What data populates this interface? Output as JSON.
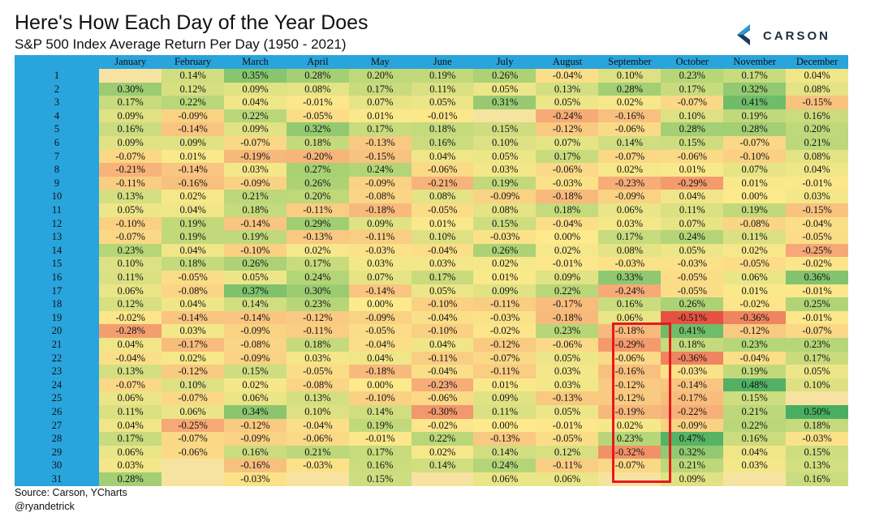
{
  "title": "Here's How Each Day of the Year Does",
  "subtitle": "S&P 500 Index Average Return Per Day (1950 - 2021)",
  "logo": {
    "text": "CARSON",
    "icon": "carson-chevron-logo",
    "colors": [
      "#2a9ad6",
      "#1f3a5f"
    ]
  },
  "footer": {
    "source": "Source: Carson, YCharts",
    "handle": "@ryandetrick"
  },
  "highlight": {
    "month": "September",
    "days": [
      20,
      30
    ],
    "color": "#e8171d"
  },
  "colors": {
    "header": "#29a4dc",
    "scale": [
      "#e8453c",
      "#f4a873",
      "#fbe98c",
      "#9bcb6e",
      "#3fab5d"
    ]
  },
  "chart_data": {
    "type": "heatmap",
    "title": "Here's How Each Day of the Year Does",
    "subtitle": "S&P 500 Index Average Return Per Day (1950 - 2021)",
    "columns": [
      "January",
      "February",
      "March",
      "April",
      "May",
      "June",
      "July",
      "August",
      "September",
      "October",
      "November",
      "December"
    ],
    "rows": [
      "1",
      "2",
      "3",
      "4",
      "5",
      "6",
      "7",
      "8",
      "9",
      "10",
      "11",
      "12",
      "13",
      "14",
      "15",
      "16",
      "17",
      "18",
      "19",
      "20",
      "21",
      "22",
      "23",
      "24",
      "25",
      "26",
      "27",
      "28",
      "29",
      "30",
      "31"
    ],
    "values": [
      [
        null,
        0.14,
        0.35,
        0.28,
        0.2,
        0.19,
        0.26,
        -0.04,
        0.1,
        0.23,
        0.17,
        0.04
      ],
      [
        0.3,
        0.12,
        0.09,
        0.08,
        0.17,
        0.11,
        0.05,
        0.13,
        0.28,
        0.17,
        0.32,
        0.08
      ],
      [
        0.17,
        0.22,
        0.04,
        -0.01,
        0.07,
        0.05,
        0.31,
        0.05,
        0.02,
        -0.07,
        0.41,
        -0.15
      ],
      [
        0.09,
        -0.09,
        0.22,
        -0.05,
        0.01,
        -0.01,
        null,
        -0.24,
        -0.16,
        0.1,
        0.19,
        0.16
      ],
      [
        0.16,
        -0.14,
        0.09,
        0.32,
        0.17,
        0.18,
        0.15,
        -0.12,
        -0.06,
        0.28,
        0.28,
        0.2
      ],
      [
        0.09,
        0.09,
        -0.07,
        0.18,
        -0.13,
        0.16,
        0.1,
        0.07,
        0.14,
        0.15,
        -0.07,
        0.21
      ],
      [
        -0.07,
        0.01,
        -0.19,
        -0.2,
        -0.15,
        0.04,
        0.05,
        0.17,
        -0.07,
        -0.06,
        -0.1,
        0.08
      ],
      [
        -0.21,
        -0.14,
        0.03,
        0.27,
        0.24,
        -0.06,
        0.03,
        -0.06,
        0.02,
        0.01,
        0.07,
        0.04
      ],
      [
        -0.11,
        -0.16,
        -0.09,
        0.26,
        -0.09,
        -0.21,
        0.19,
        -0.03,
        -0.23,
        -0.29,
        0.01,
        -0.01
      ],
      [
        0.13,
        0.02,
        0.21,
        0.2,
        -0.08,
        0.08,
        -0.09,
        -0.18,
        -0.09,
        0.04,
        0.0,
        0.03
      ],
      [
        0.05,
        0.04,
        0.18,
        -0.11,
        -0.18,
        -0.05,
        0.08,
        0.18,
        0.06,
        0.11,
        0.19,
        -0.15
      ],
      [
        -0.1,
        0.19,
        -0.14,
        0.29,
        0.09,
        0.01,
        0.15,
        -0.04,
        0.03,
        0.07,
        -0.08,
        -0.04
      ],
      [
        -0.07,
        0.19,
        0.19,
        -0.13,
        -0.11,
        0.1,
        -0.03,
        0.0,
        0.17,
        0.24,
        0.11,
        -0.05
      ],
      [
        0.23,
        0.04,
        -0.1,
        0.02,
        -0.03,
        -0.04,
        0.26,
        0.02,
        0.08,
        0.05,
        0.02,
        -0.25
      ],
      [
        0.1,
        0.18,
        0.26,
        0.17,
        0.03,
        0.03,
        0.02,
        -0.01,
        -0.03,
        -0.03,
        -0.05,
        -0.02
      ],
      [
        0.11,
        -0.05,
        0.05,
        0.24,
        0.07,
        0.17,
        0.01,
        0.09,
        0.33,
        -0.05,
        0.06,
        0.36
      ],
      [
        0.06,
        -0.08,
        0.37,
        0.3,
        -0.14,
        0.05,
        0.09,
        0.22,
        -0.24,
        -0.05,
        0.01,
        -0.01
      ],
      [
        0.12,
        0.04,
        0.14,
        0.23,
        0.0,
        -0.1,
        -0.11,
        -0.17,
        0.16,
        0.26,
        -0.02,
        0.25
      ],
      [
        -0.02,
        -0.14,
        -0.14,
        -0.12,
        -0.09,
        -0.04,
        -0.03,
        -0.18,
        0.06,
        -0.51,
        -0.36,
        -0.01
      ],
      [
        -0.28,
        0.03,
        -0.09,
        -0.11,
        -0.05,
        -0.1,
        -0.02,
        0.23,
        -0.18,
        0.41,
        -0.12,
        -0.07
      ],
      [
        0.04,
        -0.17,
        -0.08,
        0.18,
        -0.04,
        0.04,
        -0.12,
        -0.06,
        -0.29,
        0.18,
        0.23,
        0.23
      ],
      [
        -0.04,
        0.02,
        -0.09,
        0.03,
        0.04,
        -0.11,
        -0.07,
        0.05,
        -0.06,
        -0.36,
        -0.04,
        0.17
      ],
      [
        0.13,
        -0.12,
        0.15,
        -0.05,
        -0.18,
        -0.04,
        -0.11,
        0.03,
        -0.16,
        -0.03,
        0.19,
        0.05
      ],
      [
        -0.07,
        0.1,
        0.02,
        -0.08,
        0.0,
        -0.23,
        0.01,
        0.03,
        -0.12,
        -0.14,
        0.48,
        0.1
      ],
      [
        0.06,
        -0.07,
        0.06,
        0.13,
        -0.1,
        -0.06,
        0.09,
        -0.13,
        -0.12,
        -0.17,
        0.15,
        null
      ],
      [
        0.11,
        0.06,
        0.34,
        0.1,
        0.14,
        -0.3,
        0.11,
        0.05,
        -0.19,
        -0.22,
        0.21,
        0.5
      ],
      [
        0.04,
        -0.25,
        -0.12,
        -0.04,
        0.19,
        -0.02,
        0.0,
        -0.01,
        0.02,
        -0.09,
        0.22,
        0.18
      ],
      [
        0.17,
        -0.07,
        -0.09,
        -0.06,
        -0.01,
        0.22,
        -0.13,
        -0.05,
        0.23,
        0.47,
        0.16,
        -0.03
      ],
      [
        0.06,
        -0.06,
        0.16,
        0.21,
        0.17,
        0.02,
        0.14,
        0.12,
        -0.32,
        0.32,
        0.04,
        0.15
      ],
      [
        0.03,
        null,
        -0.16,
        -0.03,
        0.16,
        0.14,
        0.24,
        -0.11,
        -0.07,
        0.21,
        0.03,
        0.13
      ],
      [
        0.28,
        null,
        -0.03,
        null,
        0.15,
        null,
        0.06,
        0.06,
        null,
        0.09,
        null,
        0.16
      ]
    ],
    "value_format": "percent",
    "decimals": 2,
    "color_scale": {
      "min": -0.51,
      "mid": 0,
      "max": 0.5
    }
  }
}
